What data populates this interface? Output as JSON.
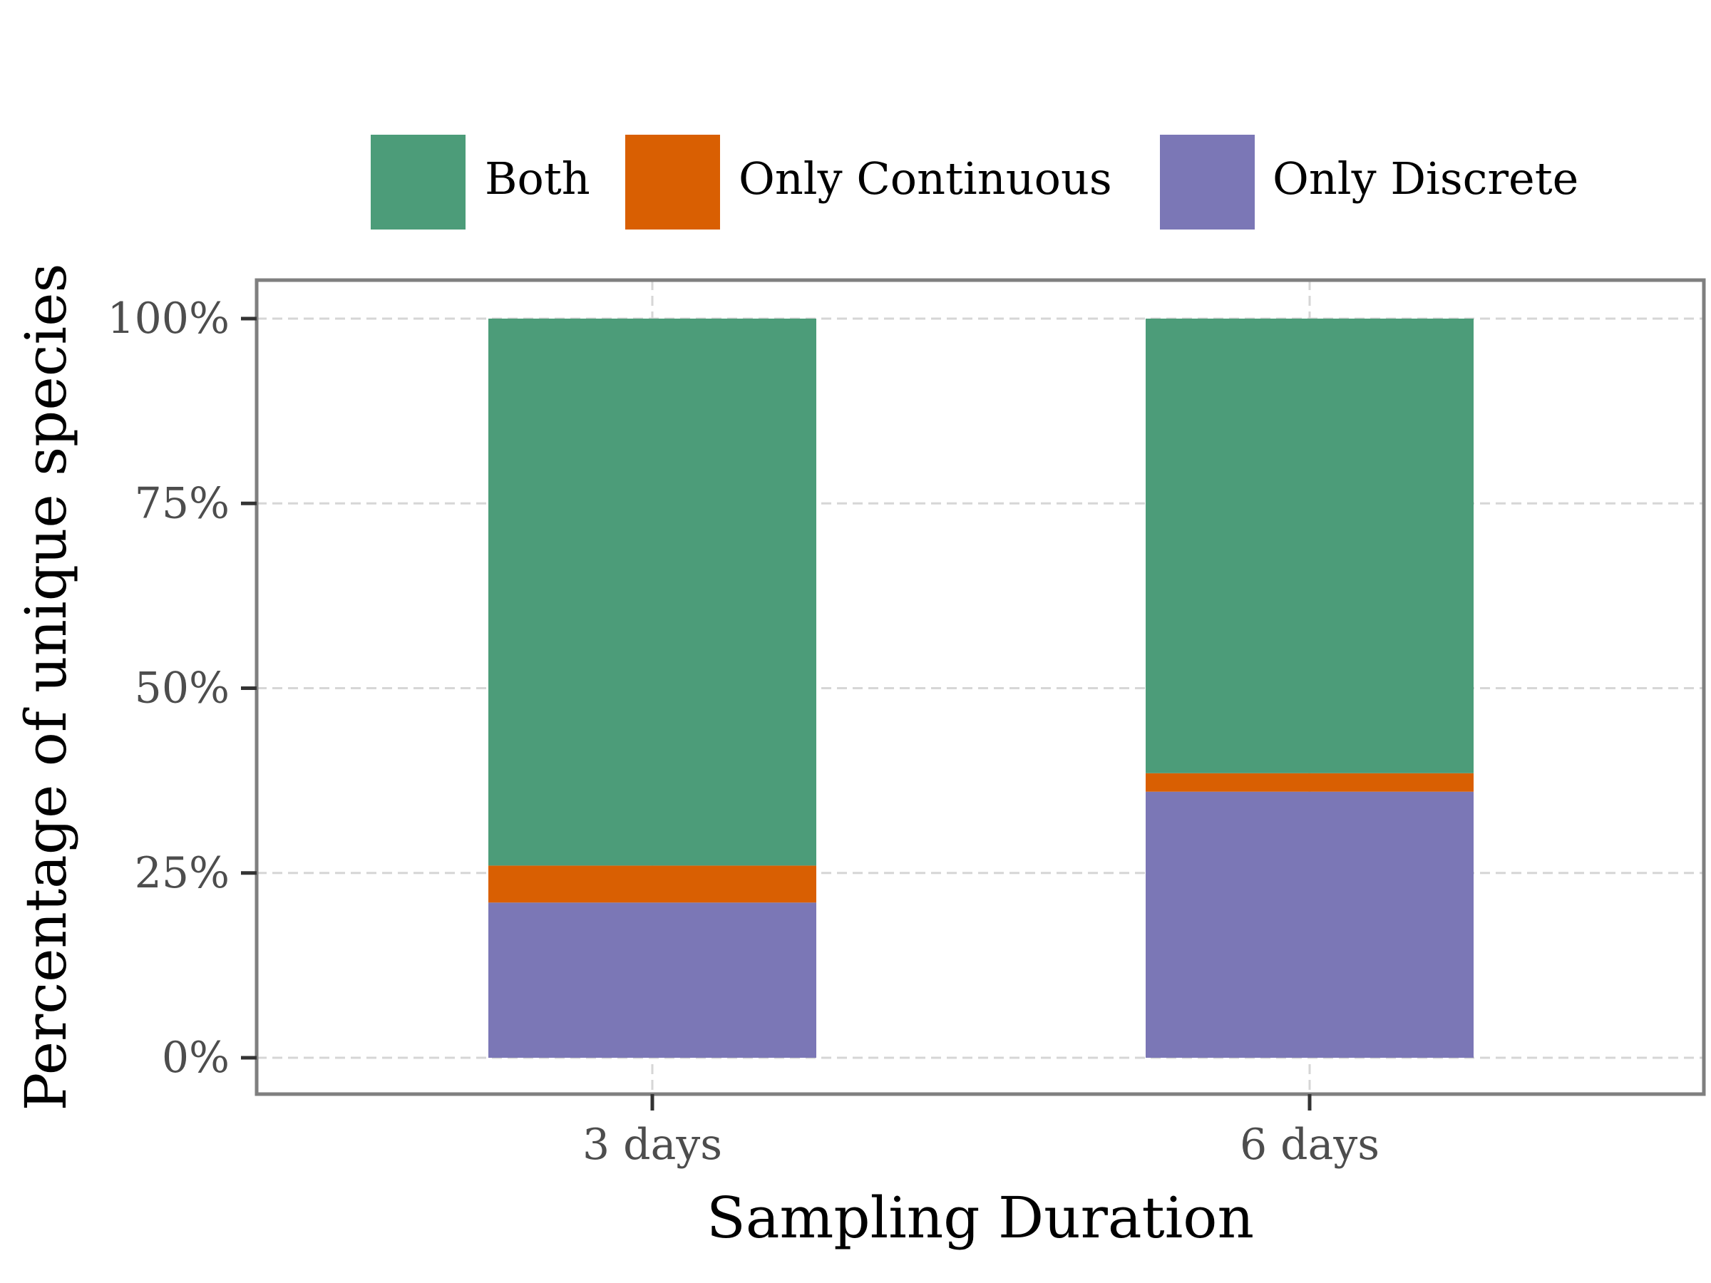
{
  "chart_data": {
    "type": "bar",
    "stacked": true,
    "categories": [
      "3 days",
      "6 days"
    ],
    "series": [
      {
        "name": "Only Discrete",
        "values": [
          21,
          36
        ],
        "color": "#7b77b6"
      },
      {
        "name": "Only Continuous",
        "values": [
          5,
          2.5
        ],
        "color": "#d95f02"
      },
      {
        "name": "Both",
        "values": [
          74,
          61.5
        ],
        "color": "#4c9c79"
      }
    ],
    "legend_order": [
      "Both",
      "Only Continuous",
      "Only Discrete"
    ],
    "legend_position": "top",
    "xlabel": "Sampling Duration",
    "ylabel": "Percentage of unique species",
    "ylim": [
      0,
      100
    ],
    "yticks": [
      0,
      25,
      50,
      75,
      100
    ],
    "ytick_labels": [
      "0%",
      "25%",
      "50%",
      "75%",
      "100%"
    ],
    "grid": true
  }
}
